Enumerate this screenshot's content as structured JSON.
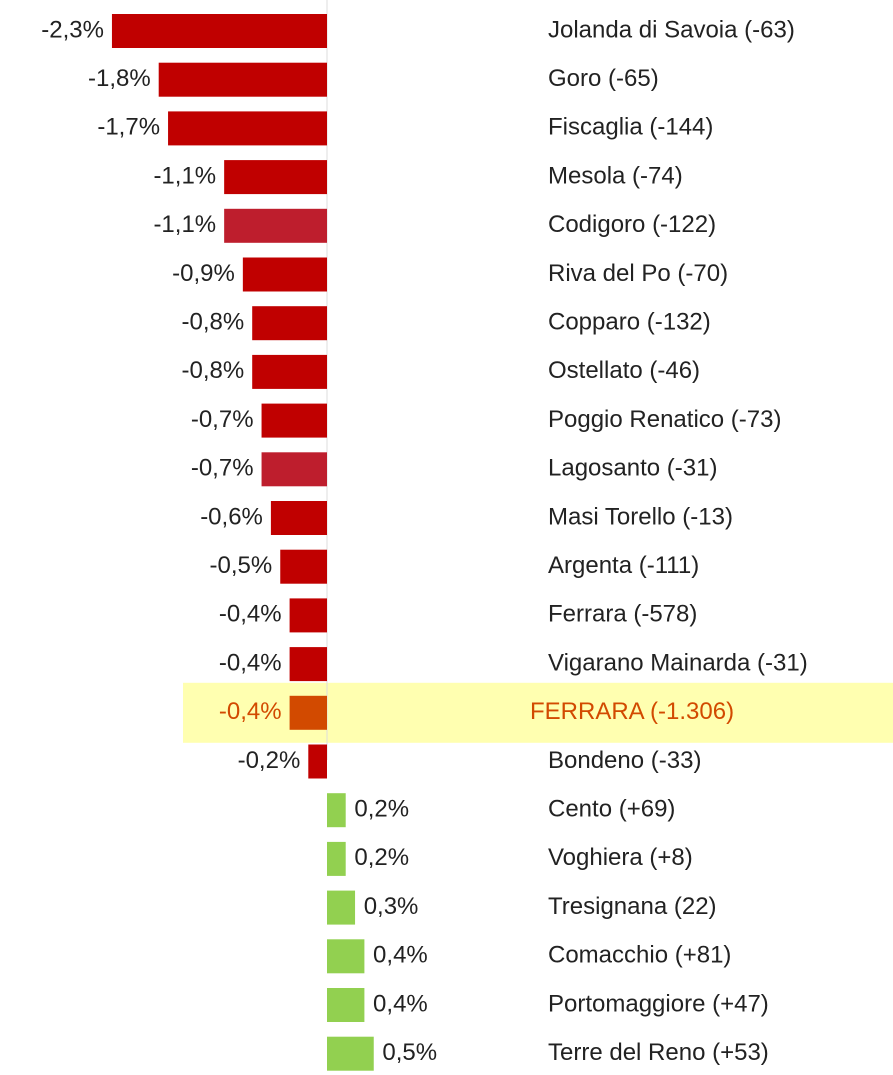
{
  "chart_data": {
    "type": "hbar",
    "categories": [
      "Jolanda di Savoia (-63)",
      "Goro (-65)",
      "Fiscaglia (-144)",
      "Mesola (-74)",
      "Codigoro (-122)",
      "Riva del Po (-70)",
      "Copparo (-132)",
      "Ostellato (-46)",
      "Poggio Renatico (-73)",
      "Lagosanto (-31)",
      "Masi Torello (-13)",
      "Argenta (-111)",
      "Ferrara (-578)",
      "Vigarano Mainarda (-31)",
      "FERRARA (-1.306)",
      "Bondeno (-33)",
      "Cento (+69)",
      "Voghiera (+8)",
      "Tresignana (22)",
      "Comacchio (+81)",
      "Portomaggiore (+47)",
      "Terre del Reno (+53)"
    ],
    "values": [
      -2.3,
      -1.8,
      -1.7,
      -1.1,
      -1.1,
      -0.9,
      -0.8,
      -0.8,
      -0.7,
      -0.7,
      -0.6,
      -0.5,
      -0.4,
      -0.4,
      -0.4,
      -0.2,
      0.2,
      0.2,
      0.3,
      0.4,
      0.4,
      0.5
    ],
    "value_labels": [
      "-2,3%",
      "-1,8%",
      "-1,7%",
      "-1,1%",
      "-1,1%",
      "-0,9%",
      "-0,8%",
      "-0,8%",
      "-0,7%",
      "-0,7%",
      "-0,6%",
      "-0,5%",
      "-0,4%",
      "-0,4%",
      "-0,4%",
      "-0,2%",
      "0,2%",
      "0,2%",
      "0,3%",
      "0,4%",
      "0,4%",
      "0,5%"
    ],
    "colors": [
      "#c00000",
      "#c00000",
      "#c00000",
      "#c00000",
      "#be1e2d",
      "#c00000",
      "#c00000",
      "#c00000",
      "#c00000",
      "#be1e2d",
      "#c00000",
      "#c00000",
      "#c00000",
      "#c00000",
      "#d24a00",
      "#c00000",
      "#92d050",
      "#92d050",
      "#92d050",
      "#92d050",
      "#92d050",
      "#92d050"
    ],
    "highlight": 14
  }
}
